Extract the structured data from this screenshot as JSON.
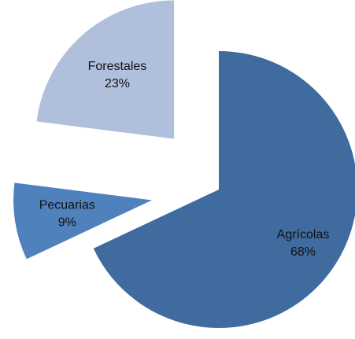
{
  "chart_data": {
    "type": "pie",
    "exploded": true,
    "categories": [
      "Agrícolas",
      "Pecuarias",
      "Forestales"
    ],
    "values": [
      68,
      9,
      23
    ],
    "value_labels": [
      "68%",
      "9%",
      "23%"
    ],
    "colors": [
      "#3f6b9e",
      "#4f81bd",
      "#b0bfdb"
    ]
  }
}
